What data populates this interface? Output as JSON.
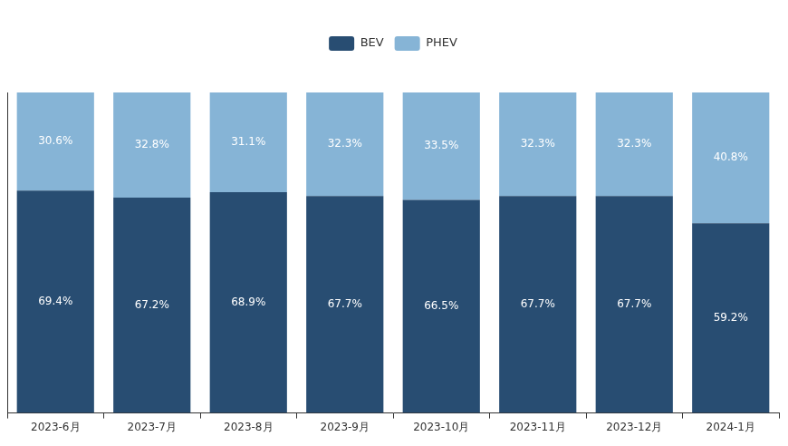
{
  "chart_data": {
    "type": "bar",
    "stacked": true,
    "categories": [
      "2023-6月",
      "2023-7月",
      "2023-8月",
      "2023-9月",
      "2023-10月",
      "2023-11月",
      "2023-12月",
      "2024-1月"
    ],
    "series": [
      {
        "name": "BEV",
        "color": "#284d72",
        "values": [
          69.4,
          67.2,
          68.9,
          67.7,
          66.5,
          67.7,
          67.7,
          59.2
        ],
        "value_labels": [
          "69.4%",
          "67.2%",
          "68.9%",
          "67.7%",
          "66.5%",
          "67.7%",
          "67.7%",
          "59.2%"
        ]
      },
      {
        "name": "PHEV",
        "color": "#86b4d6",
        "values": [
          30.6,
          32.8,
          31.1,
          32.3,
          33.5,
          32.3,
          32.3,
          40.8
        ],
        "value_labels": [
          "30.6%",
          "32.8%",
          "31.1%",
          "32.3%",
          "33.5%",
          "32.3%",
          "32.3%",
          "40.8%"
        ]
      }
    ],
    "ylim": [
      0,
      100
    ],
    "legend": "top",
    "data_labels": true,
    "grid": false,
    "tick_labels": "x"
  }
}
